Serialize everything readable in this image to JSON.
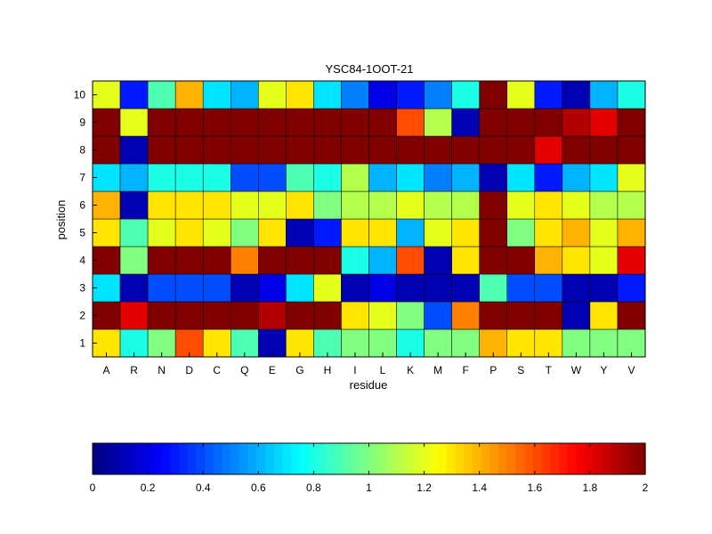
{
  "chart_data": {
    "type": "heatmap",
    "title": "YSC84-1OOT-21",
    "xlabel": "residue",
    "ylabel": "position",
    "x_categories": [
      "A",
      "R",
      "N",
      "D",
      "C",
      "Q",
      "E",
      "G",
      "H",
      "I",
      "L",
      "K",
      "M",
      "F",
      "P",
      "S",
      "T",
      "W",
      "Y",
      "V"
    ],
    "y_categories": [
      "1",
      "2",
      "3",
      "4",
      "5",
      "6",
      "7",
      "8",
      "9",
      "10"
    ],
    "values": [
      [
        1.3,
        0.8,
        1.0,
        1.6,
        1.3,
        0.9,
        0.1,
        1.3,
        0.9,
        1.0,
        1.0,
        0.8,
        1.0,
        1.0,
        1.4,
        1.3,
        1.3,
        1.0,
        1.0,
        1.0
      ],
      [
        2.0,
        1.8,
        2.0,
        2.0,
        2.0,
        2.0,
        1.9,
        2.0,
        2.0,
        1.3,
        1.2,
        1.0,
        0.4,
        1.5,
        2.0,
        2.0,
        2.0,
        0.1,
        1.3,
        2.0
      ],
      [
        0.7,
        0.1,
        0.4,
        0.4,
        0.4,
        0.1,
        0.2,
        0.7,
        1.2,
        0.1,
        0.2,
        0.1,
        0.1,
        0.1,
        0.9,
        0.4,
        0.4,
        0.1,
        0.1,
        0.3
      ],
      [
        2.0,
        1.0,
        2.0,
        2.0,
        2.0,
        1.5,
        2.0,
        2.0,
        2.0,
        0.8,
        0.6,
        1.6,
        0.1,
        1.3,
        2.0,
        2.0,
        1.4,
        1.3,
        1.2,
        1.8
      ],
      [
        1.3,
        0.9,
        1.2,
        1.3,
        1.2,
        1.0,
        1.3,
        0.1,
        0.3,
        1.3,
        1.3,
        0.6,
        1.2,
        1.3,
        2.0,
        1.0,
        1.3,
        1.4,
        1.2,
        1.4
      ],
      [
        1.4,
        0.1,
        1.3,
        1.3,
        1.3,
        1.2,
        1.2,
        1.3,
        1.0,
        1.1,
        1.1,
        1.2,
        1.1,
        1.1,
        2.0,
        1.2,
        1.3,
        1.2,
        1.1,
        1.1
      ],
      [
        0.7,
        0.6,
        0.8,
        0.8,
        0.8,
        0.4,
        0.4,
        0.9,
        0.8,
        1.1,
        0.6,
        0.7,
        0.5,
        0.6,
        0.1,
        0.7,
        0.3,
        0.6,
        0.7,
        1.2
      ],
      [
        2.0,
        0.1,
        2.0,
        2.0,
        2.0,
        2.0,
        2.0,
        2.0,
        2.0,
        2.0,
        2.0,
        2.0,
        2.0,
        2.0,
        2.0,
        2.0,
        1.8,
        2.0,
        2.0,
        2.0
      ],
      [
        2.0,
        1.2,
        2.0,
        2.0,
        2.0,
        2.0,
        2.0,
        2.0,
        2.0,
        2.0,
        2.0,
        1.6,
        1.1,
        0.1,
        2.0,
        2.0,
        2.0,
        1.9,
        1.8,
        2.0
      ],
      [
        1.2,
        0.3,
        0.9,
        1.4,
        0.7,
        0.6,
        1.2,
        1.3,
        0.7,
        0.5,
        0.2,
        0.3,
        0.5,
        0.8,
        2.0,
        1.2,
        0.3,
        0.1,
        0.6,
        0.8
      ]
    ],
    "colorbar": {
      "min": 0,
      "max": 2,
      "ticks": [
        "0",
        "0.2",
        "0.4",
        "0.6",
        "0.8",
        "1",
        "1.2",
        "1.4",
        "1.6",
        "1.8",
        "2"
      ]
    },
    "colormap": "jet",
    "grid": true
  }
}
